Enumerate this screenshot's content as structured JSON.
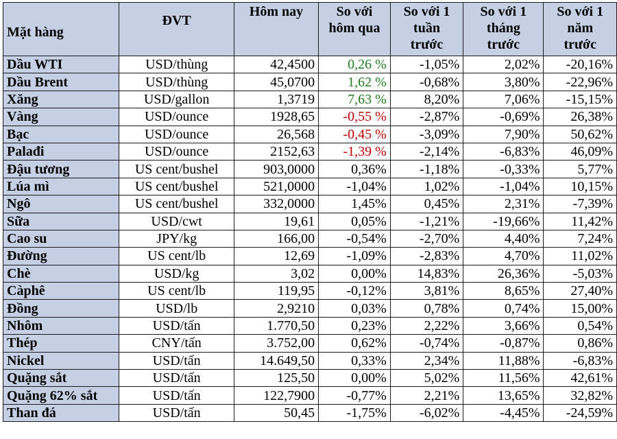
{
  "header": {
    "item": "Mặt hàng",
    "unit": "ĐVT",
    "today": "Hôm nay",
    "vs_yesterday": [
      "So với",
      "hôm qua"
    ],
    "vs_week": [
      "So với 1",
      "tuần",
      "trước"
    ],
    "vs_month": [
      "So với 1",
      "tháng",
      "trước"
    ],
    "vs_year": [
      "So với 1",
      "năm",
      "trước"
    ]
  },
  "colors": {
    "header_bg": "#c6d0e4",
    "up": "#1e7b1e",
    "down": "#c00000"
  },
  "rows": [
    {
      "name": "Dầu WTI",
      "unit": "USD/thùng",
      "today": "42,4500",
      "d1": "0,26 %",
      "d1_color": "up",
      "w1": "-1,05%",
      "m1": "2,02%",
      "y1": "-20,16%"
    },
    {
      "name": "Dầu Brent",
      "unit": "USD/thùng",
      "today": "45,0700",
      "d1": "1,62 %",
      "d1_color": "up",
      "w1": "-0,68%",
      "m1": "3,80%",
      "y1": "-22,96%"
    },
    {
      "name": "Xăng",
      "unit": "USD/gallon",
      "today": "1,3719",
      "d1": "7,63 %",
      "d1_color": "up",
      "w1": "8,20%",
      "m1": "7,06%",
      "y1": "-15,15%"
    },
    {
      "name": "Vàng",
      "unit": "USD/ounce",
      "today": "1928,65",
      "d1": "-0,55 %",
      "d1_color": "down",
      "w1": "-2,87%",
      "m1": "-0,69%",
      "y1": "26,38%"
    },
    {
      "name": "Bạc",
      "unit": "USD/ounce",
      "today": "26,568",
      "d1": "-0,45 %",
      "d1_color": "down",
      "w1": "-3,09%",
      "m1": "7,90%",
      "y1": "50,62%"
    },
    {
      "name": "Palađi",
      "unit": "USD/ounce",
      "today": "2152,63",
      "d1": "-1,39 %",
      "d1_color": "down",
      "w1": "-2,14%",
      "m1": "-6,83%",
      "y1": "46,09%"
    },
    {
      "name": "Đậu tương",
      "unit": "US cent/bushel",
      "today": "903,0000",
      "d1": "0,36%",
      "d1_color": "",
      "w1": "-1,18%",
      "m1": "-0,33%",
      "y1": "5,77%"
    },
    {
      "name": "Lúa mì",
      "unit": "US cent/bushel",
      "today": "521,0000",
      "d1": "-1,04%",
      "d1_color": "",
      "w1": "1,02%",
      "m1": "-1,04%",
      "y1": "10,15%"
    },
    {
      "name": "Ngô",
      "unit": "US cent/bushel",
      "today": "332,0000",
      "d1": "1,45%",
      "d1_color": "",
      "w1": "0,45%",
      "m1": "2,31%",
      "y1": "-7,39%"
    },
    {
      "name": "Sữa",
      "unit": "USD/cwt",
      "today": "19,61",
      "d1": "0,05%",
      "d1_color": "",
      "w1": "-1,21%",
      "m1": "-19,66%",
      "y1": "11,42%"
    },
    {
      "name": "Cao su",
      "unit": "JPY/kg",
      "today": "166,00",
      "d1": "-0,54%",
      "d1_color": "",
      "w1": "-2,70%",
      "m1": "4,40%",
      "y1": "7,24%"
    },
    {
      "name": "Đường",
      "unit": "US cent/lb",
      "today": "12,69",
      "d1": "-1,09%",
      "d1_color": "",
      "w1": "-2,83%",
      "m1": "4,70%",
      "y1": "11,02%"
    },
    {
      "name": "Chè",
      "unit": "USD/kg",
      "today": "3,02",
      "d1": "0,00%",
      "d1_color": "",
      "w1": "14,83%",
      "m1": "26,36%",
      "y1": "-5,03%"
    },
    {
      "name": "Càphê",
      "unit": "US cent/lb",
      "today": "119,95",
      "d1": "-0,12%",
      "d1_color": "",
      "w1": "3,81%",
      "m1": "8,65%",
      "y1": "27,40%"
    },
    {
      "name": "Đồng",
      "unit": "USD/lb",
      "today": "2,9210",
      "d1": "0,03%",
      "d1_color": "",
      "w1": "0,78%",
      "m1": "0,74%",
      "y1": "15,00%"
    },
    {
      "name": "Nhôm",
      "unit": "USD/tấn",
      "today": "1.770,50",
      "d1": "0,23%",
      "d1_color": "",
      "w1": "2,22%",
      "m1": "3,66%",
      "y1": "0,54%"
    },
    {
      "name": "Thép",
      "unit": "CNY/tấn",
      "today": "3.752,00",
      "d1": "0,62%",
      "d1_color": "",
      "w1": "-0,74%",
      "m1": "-0,87%",
      "y1": "0,86%"
    },
    {
      "name": "Nickel",
      "unit": "USD/tấn",
      "today": "14.649,50",
      "d1": "0,33%",
      "d1_color": "",
      "w1": "2,34%",
      "m1": "11,88%",
      "y1": "-6,83%"
    },
    {
      "name": "Quặng sắt",
      "unit": "USD/tấn",
      "today": "125,50",
      "d1": "0,00%",
      "d1_color": "",
      "w1": "5,02%",
      "m1": "11,56%",
      "y1": "42,61%"
    },
    {
      "name": "Quặng 62% sắt",
      "unit": "USD/tấn",
      "today": "122,7900",
      "d1": "-0,77%",
      "d1_color": "",
      "w1": "2,21%",
      "m1": "13,65%",
      "y1": "32,82%"
    },
    {
      "name": "Than đá",
      "unit": "USD/tấn",
      "today": "50,45",
      "d1": "-1,75%",
      "d1_color": "",
      "w1": "-6,02%",
      "m1": "-4,45%",
      "y1": "-24,59%"
    }
  ]
}
